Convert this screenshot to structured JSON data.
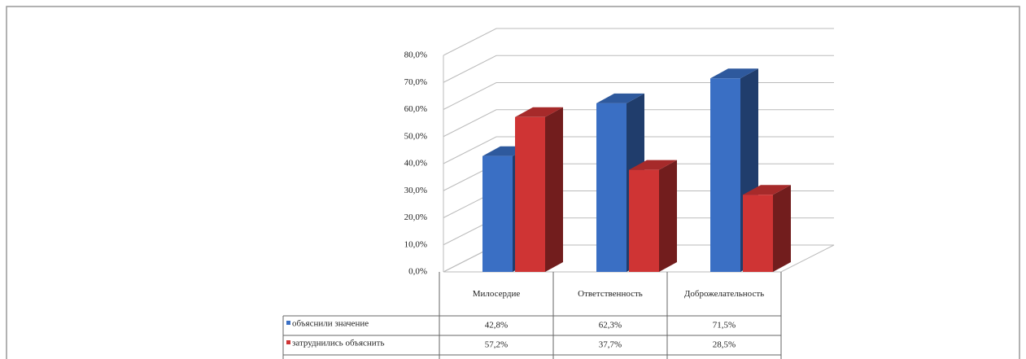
{
  "chart_data": {
    "type": "bar3d",
    "categories": [
      "Милосердие",
      "Ответственность",
      "Доброжелательность"
    ],
    "series": [
      {
        "name": "объяснили значение",
        "color": "#3a6fc4",
        "values": [
          42.8,
          62.3,
          71.5
        ],
        "value_labels": [
          "42,8%",
          "62,3%",
          "71,5%"
        ]
      },
      {
        "name": "затруднились объяснить",
        "color": "#cf3434",
        "values": [
          57.2,
          37.7,
          28.5
        ],
        "value_labels": [
          "57,2%",
          "37,7%",
          "28,5%"
        ]
      }
    ],
    "ylim": [
      0,
      80
    ],
    "yticks": [
      {
        "value": 0,
        "label": "0,0%"
      },
      {
        "value": 10,
        "label": "10,0%"
      },
      {
        "value": 20,
        "label": "20,0%"
      },
      {
        "value": 30,
        "label": "30,0%"
      },
      {
        "value": 40,
        "label": "40,0%"
      },
      {
        "value": 50,
        "label": "50,0%"
      },
      {
        "value": 60,
        "label": "60,0%"
      },
      {
        "value": 70,
        "label": "70,0%"
      },
      {
        "value": 80,
        "label": "80,0%"
      }
    ],
    "grid": true
  }
}
